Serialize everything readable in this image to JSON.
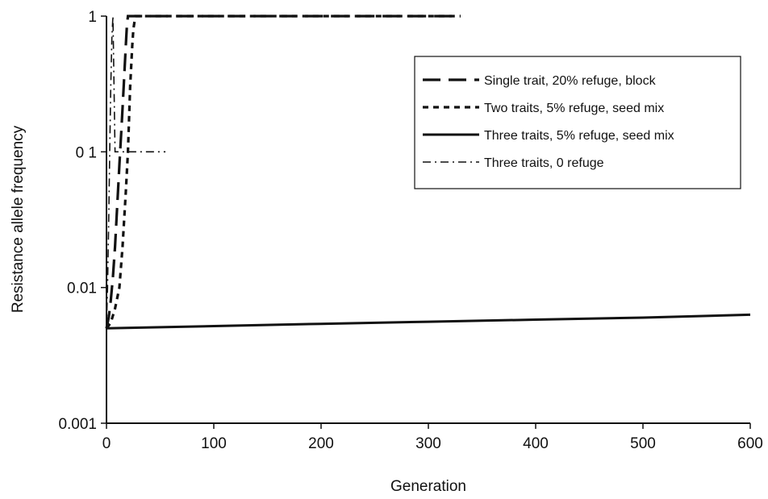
{
  "chart_data": {
    "type": "line",
    "title": "",
    "xlabel": "Generation",
    "ylabel": "Resistance allele frequency",
    "xlim": [
      0,
      600
    ],
    "ylim": [
      0.001,
      1
    ],
    "y_scale": "log",
    "x_ticks": [
      "0",
      "100",
      "200",
      "300",
      "400",
      "500",
      "600"
    ],
    "y_ticks": [
      "0.001",
      "0.01",
      "0 1",
      "1"
    ],
    "grid": false,
    "legend_position": "top-right",
    "series": [
      {
        "name": "Single trait, 20% refuge, block",
        "color": "#111111",
        "style": "long-dash",
        "x": [
          0,
          2,
          4,
          6,
          8,
          10,
          12,
          14,
          16,
          18,
          19,
          20,
          100,
          200,
          300,
          330
        ],
        "y": [
          0.005,
          0.006,
          0.008,
          0.012,
          0.02,
          0.04,
          0.08,
          0.15,
          0.3,
          0.6,
          0.85,
          1,
          1,
          1,
          1,
          1
        ]
      },
      {
        "name": "Two traits, 5% refuge, seed mix",
        "color": "#111111",
        "style": "short-dash",
        "x": [
          0,
          4,
          8,
          12,
          15,
          18,
          20,
          22,
          24,
          25,
          26,
          27,
          100,
          200,
          330
        ],
        "y": [
          0.005,
          0.0055,
          0.007,
          0.01,
          0.02,
          0.05,
          0.1,
          0.3,
          0.6,
          0.8,
          0.9,
          1,
          1,
          1,
          1
        ]
      },
      {
        "name": "Three traits, 5% refuge, seed mix",
        "color": "#111111",
        "style": "solid",
        "x": [
          0,
          100,
          200,
          300,
          400,
          500,
          600
        ],
        "y": [
          0.005,
          0.0052,
          0.0054,
          0.0056,
          0.0058,
          0.006,
          0.0063
        ]
      },
      {
        "name": "Three traits, 0 refuge",
        "color": "#111111",
        "style": "dash-dot",
        "x": [
          0,
          1,
          2,
          3,
          4,
          5,
          6,
          8,
          55
        ],
        "y": [
          0.005,
          0.01,
          0.03,
          0.1,
          0.3,
          0.7,
          1,
          0.1,
          0.1
        ]
      }
    ]
  }
}
